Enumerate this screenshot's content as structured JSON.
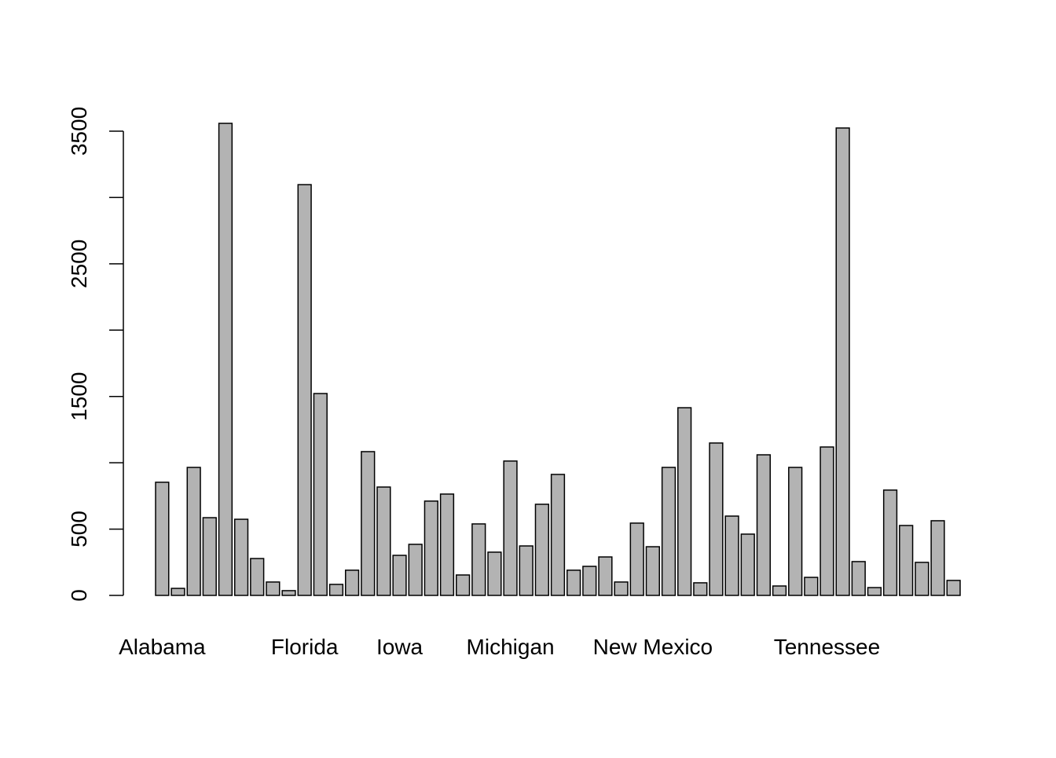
{
  "chart_data": {
    "type": "bar",
    "categories": [
      "Alabama",
      null,
      null,
      null,
      null,
      null,
      null,
      null,
      null,
      "Florida",
      null,
      null,
      null,
      null,
      null,
      "Iowa",
      null,
      null,
      null,
      null,
      null,
      null,
      "Michigan",
      null,
      null,
      null,
      null,
      null,
      null,
      null,
      null,
      "New Mexico",
      null,
      null,
      null,
      null,
      null,
      null,
      null,
      null,
      null,
      null,
      "Tennessee",
      null,
      null,
      null,
      null,
      null,
      null,
      null,
      null
    ],
    "values": [
      853,
      53,
      965,
      586,
      3559,
      574,
      278,
      101,
      36,
      3097,
      1522,
      83,
      190,
      1084,
      817,
      302,
      385,
      711,
      764,
      154,
      539,
      326,
      1013,
      373,
      687,
      912,
      190,
      219,
      290,
      101,
      545,
      367,
      965,
      1415,
      95,
      1149,
      598,
      462,
      1060,
      71,
      965,
      136,
      1119,
      3524,
      255,
      59,
      794,
      527,
      249,
      563,
      113
    ],
    "color": "#b3b3b3",
    "ylim": [
      0,
      3500
    ],
    "yticks": [
      0,
      500,
      1500,
      2500,
      3500
    ],
    "minor_yticks": [
      1000,
      2000,
      3000
    ]
  }
}
